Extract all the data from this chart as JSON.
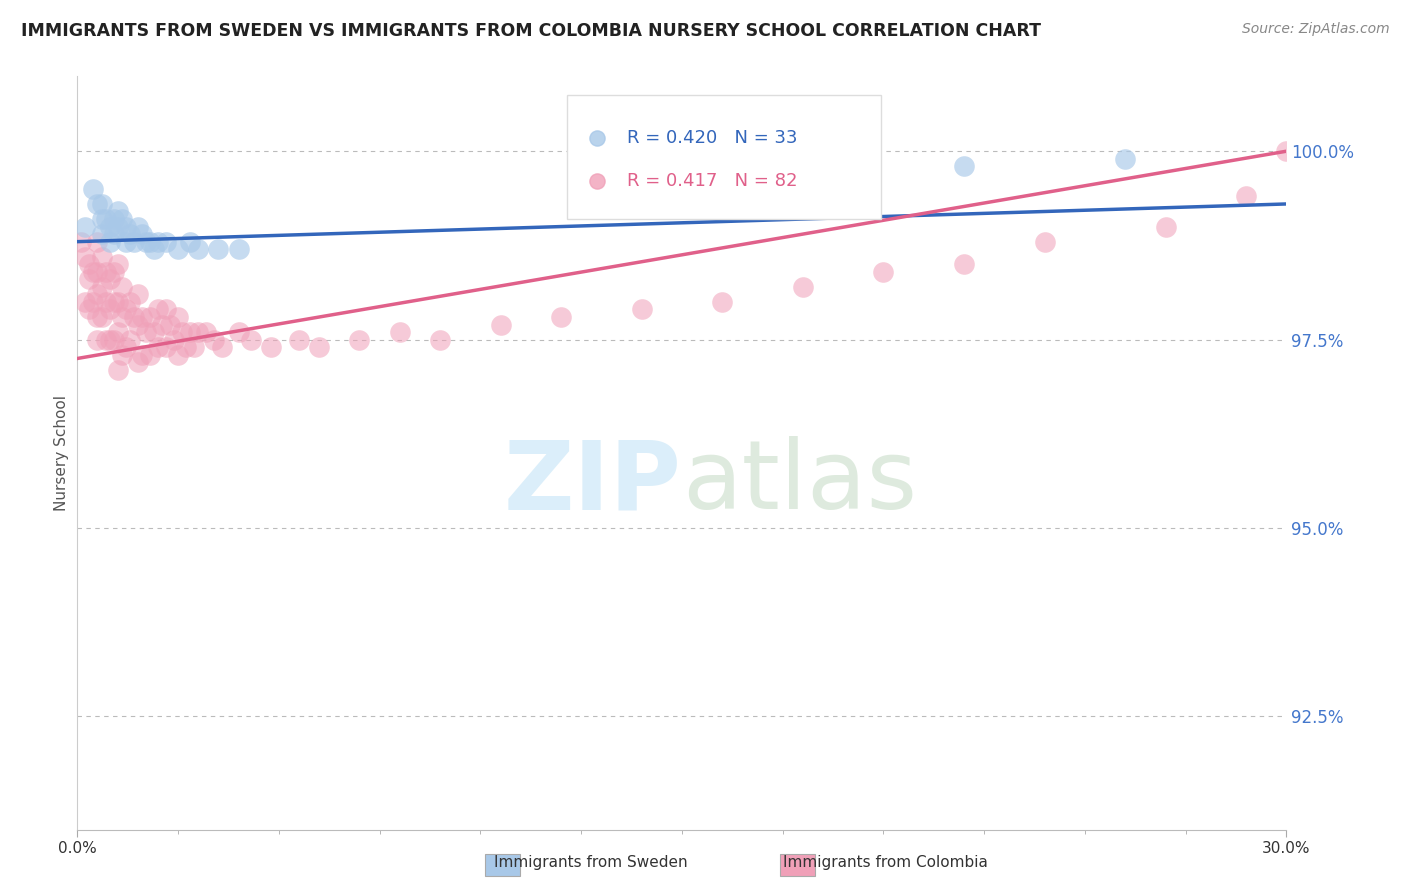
{
  "title": "IMMIGRANTS FROM SWEDEN VS IMMIGRANTS FROM COLOMBIA NURSERY SCHOOL CORRELATION CHART",
  "source": "Source: ZipAtlas.com",
  "ylabel": "Nursery School",
  "ytick_values": [
    1.0,
    0.975,
    0.95,
    0.925
  ],
  "xlim": [
    0.0,
    0.3
  ],
  "ylim": [
    0.91,
    1.01
  ],
  "legend_sweden_R": "R = 0.420",
  "legend_sweden_N": "N = 33",
  "legend_colombia_R": "R = 0.417",
  "legend_colombia_N": "N = 82",
  "sweden_color": "#a8c8e8",
  "colombia_color": "#f0a0b8",
  "sweden_line_color": "#3366bb",
  "colombia_line_color": "#e0608a",
  "sweden_x": [
    0.002,
    0.004,
    0.005,
    0.006,
    0.006,
    0.006,
    0.007,
    0.008,
    0.008,
    0.009,
    0.009,
    0.01,
    0.01,
    0.011,
    0.012,
    0.012,
    0.013,
    0.014,
    0.015,
    0.016,
    0.017,
    0.018,
    0.019,
    0.02,
    0.022,
    0.025,
    0.028,
    0.03,
    0.035,
    0.04,
    0.14,
    0.22,
    0.26
  ],
  "sweden_y": [
    0.99,
    0.995,
    0.993,
    0.993,
    0.991,
    0.989,
    0.991,
    0.99,
    0.988,
    0.991,
    0.989,
    0.992,
    0.99,
    0.991,
    0.99,
    0.988,
    0.989,
    0.988,
    0.99,
    0.989,
    0.988,
    0.988,
    0.987,
    0.988,
    0.988,
    0.987,
    0.988,
    0.987,
    0.987,
    0.987,
    1.0,
    0.998,
    0.999
  ],
  "colombia_x": [
    0.001,
    0.002,
    0.002,
    0.003,
    0.003,
    0.003,
    0.004,
    0.004,
    0.005,
    0.005,
    0.005,
    0.005,
    0.005,
    0.006,
    0.006,
    0.006,
    0.007,
    0.007,
    0.007,
    0.008,
    0.008,
    0.008,
    0.009,
    0.009,
    0.009,
    0.01,
    0.01,
    0.01,
    0.01,
    0.011,
    0.011,
    0.011,
    0.012,
    0.012,
    0.013,
    0.013,
    0.014,
    0.015,
    0.015,
    0.015,
    0.016,
    0.016,
    0.017,
    0.018,
    0.018,
    0.019,
    0.02,
    0.02,
    0.021,
    0.022,
    0.022,
    0.023,
    0.024,
    0.025,
    0.025,
    0.026,
    0.027,
    0.028,
    0.029,
    0.03,
    0.032,
    0.034,
    0.036,
    0.04,
    0.043,
    0.048,
    0.055,
    0.06,
    0.07,
    0.08,
    0.09,
    0.105,
    0.12,
    0.14,
    0.16,
    0.18,
    0.2,
    0.22,
    0.24,
    0.27,
    0.29,
    0.3
  ],
  "colombia_y": [
    0.988,
    0.986,
    0.98,
    0.985,
    0.983,
    0.979,
    0.984,
    0.98,
    0.988,
    0.984,
    0.981,
    0.978,
    0.975,
    0.986,
    0.982,
    0.978,
    0.984,
    0.98,
    0.975,
    0.983,
    0.979,
    0.975,
    0.984,
    0.98,
    0.975,
    0.985,
    0.98,
    0.976,
    0.971,
    0.982,
    0.978,
    0.973,
    0.979,
    0.974,
    0.98,
    0.975,
    0.978,
    0.981,
    0.977,
    0.972,
    0.978,
    0.973,
    0.976,
    0.978,
    0.973,
    0.976,
    0.979,
    0.974,
    0.977,
    0.979,
    0.974,
    0.977,
    0.975,
    0.978,
    0.973,
    0.976,
    0.974,
    0.976,
    0.974,
    0.976,
    0.976,
    0.975,
    0.974,
    0.976,
    0.975,
    0.974,
    0.975,
    0.974,
    0.975,
    0.976,
    0.975,
    0.977,
    0.978,
    0.979,
    0.98,
    0.982,
    0.984,
    0.985,
    0.988,
    0.99,
    0.994,
    1.0
  ]
}
